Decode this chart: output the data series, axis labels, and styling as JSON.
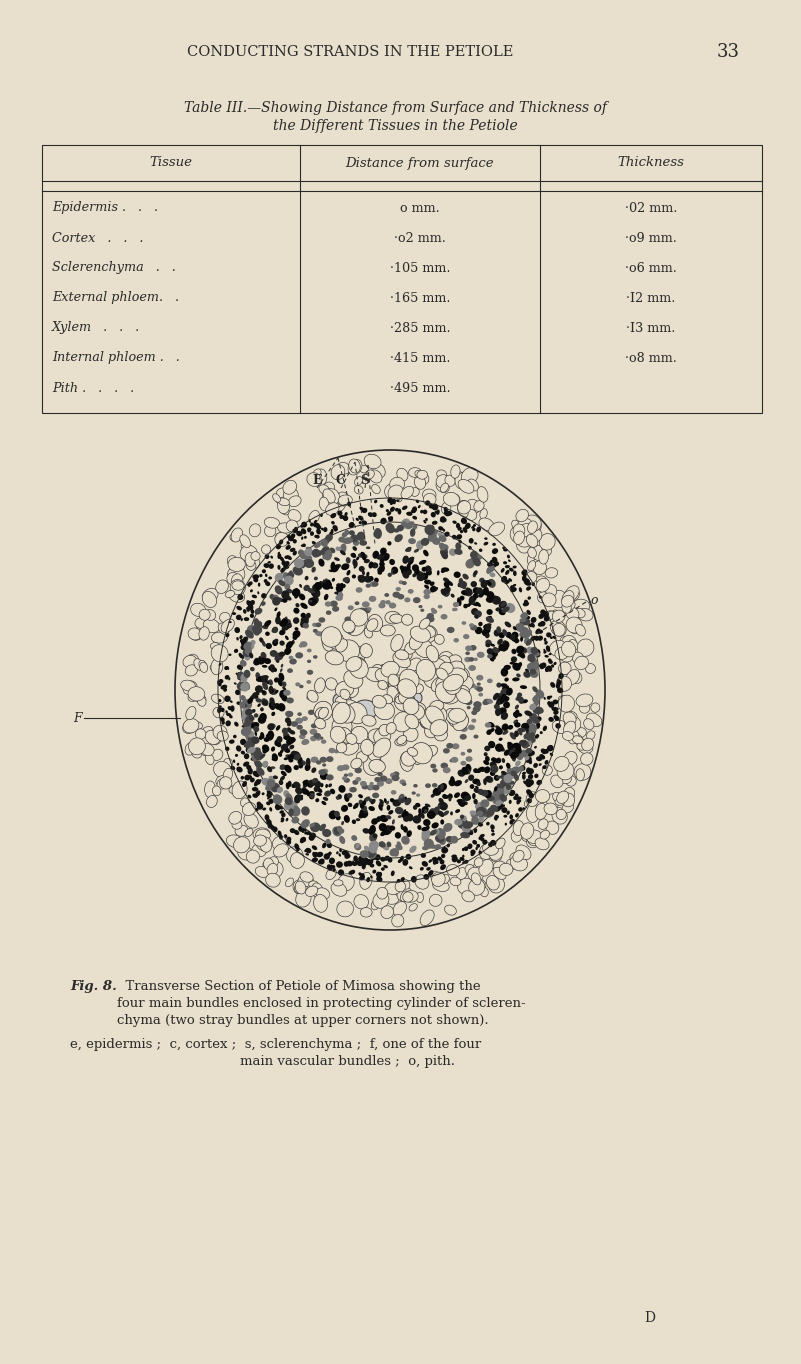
{
  "bg_color": "#e8e0cc",
  "text_color": "#1a1a2e",
  "dark_color": "#2a2a2a",
  "page_header": "CONDUCTING STRANDS IN THE PETIOLE",
  "page_number": "33",
  "table_title_line1": "Table III.—Showing Distance from Surface and Thickness of",
  "table_title_line2": "the Different Tissues in the Petiole",
  "col_headers": [
    "Tissue",
    "Distance from surface",
    "Thickness"
  ],
  "rows": [
    [
      "Epidermis .   .   .",
      "o mm.",
      "·02 mm."
    ],
    [
      "Cortex   .   .   .",
      "·o2 mm.",
      "·o9 mm."
    ],
    [
      "Sclerenchyma   .   .",
      "·105 mm.",
      "·o6 mm."
    ],
    [
      "External phloem.   .",
      "·165 mm.",
      "·I2 mm."
    ],
    [
      "Xylem   .   .   .",
      "·285 mm.",
      "·I3 mm."
    ],
    [
      "Internal phloem .   .",
      "·415 mm.",
      "·o8 mm."
    ],
    [
      "Pith .   .   .   .",
      "·495 mm.",
      ""
    ]
  ],
  "fig_caption_bold": "Fig. 8.",
  "fig_caption_rest": "  Transverse Section of Petiole of Mimosa showing the",
  "fig_caption_line2": "four main bundles enclosed in protecting cylinder of scleren-",
  "fig_caption_line3": "chyma (two stray bundles at upper corners not shown).",
  "fig_legend_part1": "e, epidermis ;  c, cortex ;  s, sclerenchyma ;  f, one of the four",
  "fig_legend_part2": "main vascular bundles ;  o, pith.",
  "page_footer": "D"
}
